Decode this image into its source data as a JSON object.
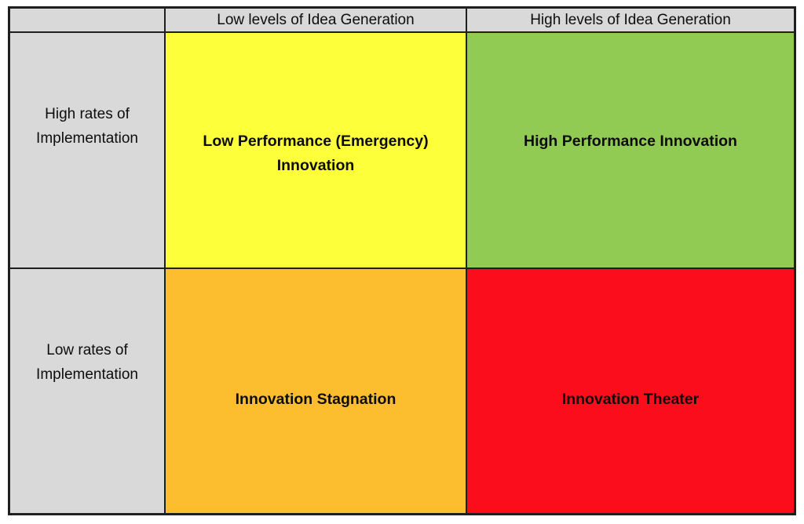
{
  "matrix": {
    "grid_line_color": "#1f1f1f",
    "background_color": "#ffffff",
    "header_fill": "#d9d9d9",
    "col_headers": [
      {
        "label": "Low levels of Idea Generation"
      },
      {
        "label": "High levels of Idea Generation"
      }
    ],
    "row_headers": [
      {
        "label": "High rates of\nImplementation"
      },
      {
        "label": "Low rates of\nImplementation"
      }
    ],
    "quadrants": [
      {
        "id": "low-performance-emergency-innovation",
        "label": "Low Performance (Emergency)\nInnovation",
        "color": "#feff3b"
      },
      {
        "id": "high-performance-innovation",
        "label": "High Performance Innovation",
        "color": "#92cb53"
      },
      {
        "id": "innovation-stagnation",
        "label": "Innovation Stagnation",
        "color": "#fcbd2e"
      },
      {
        "id": "innovation-theater",
        "label": "Innovation Theater",
        "color": "#fb0d1c"
      }
    ]
  }
}
